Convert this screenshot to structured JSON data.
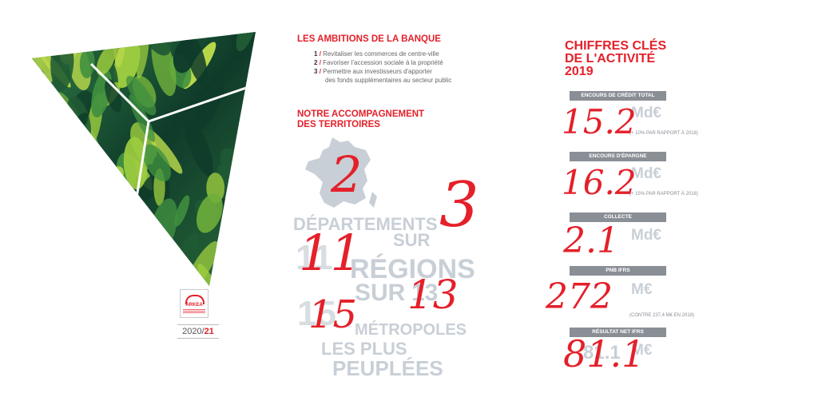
{
  "cover": {
    "logo_text": "ARKEA",
    "year_prefix": "2020/",
    "year_suffix": "21",
    "colors": {
      "leaf_dark": "#0f3b2a",
      "leaf_mid": "#3f8f3f",
      "leaf_light": "#9ccc3f",
      "accent": "#e4202a"
    }
  },
  "ambitions": {
    "title": "LES AMBITIONS DE LA BANQUE",
    "items": [
      {
        "num": "1",
        "text": "Revitaliser les commerces de centre-ville"
      },
      {
        "num": "2",
        "text": "Favoriser l'accession sociale à la propriété"
      },
      {
        "num": "3",
        "text": "Permettre aux investisseurs d'apporter",
        "text2": "des fonds supplémentaires au secteur public"
      }
    ]
  },
  "territoires": {
    "title_line1": "NOTRE ACCOMPAGNEMENT",
    "title_line2": "DES TERRITOIRES",
    "departements": "DÉPARTEMENTS",
    "sur1": "SUR",
    "regions": "RÉGIONS",
    "sur2": "SUR",
    "metropoles": "MÉTROPOLES",
    "les_plus": "LES PLUS",
    "peuplees": "PEUPLÉES",
    "printed_11": "11",
    "printed_13": "13",
    "printed_15": "15",
    "hand_2": "2",
    "hand_3": "3",
    "hand_11": "11",
    "hand_13": "13",
    "hand_15": "15"
  },
  "chiffres": {
    "title_line1": "CHIFFRES CLÉS",
    "title_line2": "DE L'ACTIVITÉ",
    "title_line3": "2019",
    "items": [
      {
        "label": "ENCOURS DE CRÉDIT TOTAL",
        "unit": "Md€",
        "handwritten": "15.2",
        "note": "(+ 10% PAR RAPPORT À 2018)"
      },
      {
        "label": "ENCOURS D'ÉPARGNE",
        "unit": "Md€",
        "handwritten": "16.2",
        "note": "(+ 15% PAR RAPPORT À 2018)"
      },
      {
        "label": "COLLECTE",
        "unit": "Md€",
        "handwritten": "2.1",
        "note": ""
      },
      {
        "label": "PNB IFRS",
        "unit": "M€",
        "handwritten": "272",
        "note": "(CONTRE 237,4 M€ EN 2018)"
      },
      {
        "label": "RÉSULTAT NET IFRS",
        "unit": "M€",
        "printed": "81.1",
        "handwritten": "81.1",
        "note": ""
      }
    ]
  }
}
